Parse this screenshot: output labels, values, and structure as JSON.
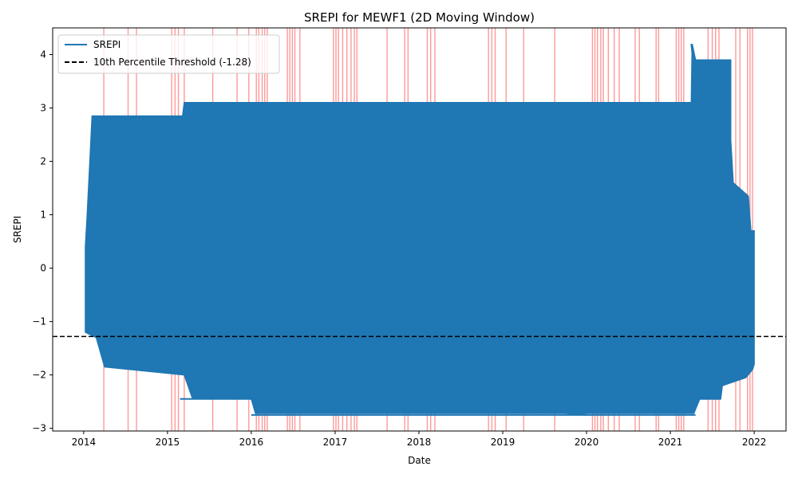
{
  "chart_data": {
    "type": "line",
    "title": "SREPI for MEWF1 (2D Moving Window)",
    "xlabel": "Date",
    "ylabel": "SREPI",
    "xlim": [
      2013.63,
      2022.38
    ],
    "ylim": [
      -3.05,
      4.5
    ],
    "x_ticks": [
      {
        "value": 2014,
        "label": "2014"
      },
      {
        "value": 2015,
        "label": "2015"
      },
      {
        "value": 2016,
        "label": "2016"
      },
      {
        "value": 2017,
        "label": "2017"
      },
      {
        "value": 2018,
        "label": "2018"
      },
      {
        "value": 2019,
        "label": "2019"
      },
      {
        "value": 2020,
        "label": "2020"
      },
      {
        "value": 2021,
        "label": "2021"
      },
      {
        "value": 2022,
        "label": "2022"
      }
    ],
    "y_ticks": [
      {
        "value": -3,
        "label": "−3"
      },
      {
        "value": -2,
        "label": "−2"
      },
      {
        "value": -1,
        "label": "−1"
      },
      {
        "value": 0,
        "label": "0"
      },
      {
        "value": 1,
        "label": "1"
      },
      {
        "value": 2,
        "label": "2"
      },
      {
        "value": 3,
        "label": "3"
      },
      {
        "value": 4,
        "label": "4"
      }
    ],
    "legend": {
      "placement": "upper-left",
      "entries": [
        {
          "label": "SREPI",
          "style": "solid",
          "color": "#1f77b4"
        },
        {
          "label": "10th Percentile Threshold (-1.28)",
          "style": "dashed",
          "color": "#000000"
        }
      ]
    },
    "threshold": {
      "value": -1.28,
      "color": "#000000",
      "style": "dashed"
    },
    "drought_span_color": "#ff0000",
    "drought_markers_x": [
      2014.24,
      2014.53,
      2014.63,
      2015.05,
      2015.09,
      2015.13,
      2015.2,
      2015.54,
      2015.83,
      2015.97,
      2016.06,
      2016.09,
      2016.13,
      2016.16,
      2016.19,
      2016.43,
      2016.46,
      2016.49,
      2016.52,
      2016.58,
      2016.98,
      2017.01,
      2017.04,
      2017.09,
      2017.14,
      2017.19,
      2017.23,
      2017.26,
      2017.62,
      2017.83,
      2017.87,
      2018.1,
      2018.14,
      2018.19,
      2018.83,
      2018.87,
      2018.91,
      2019.04,
      2019.25,
      2019.62,
      2020.07,
      2020.1,
      2020.13,
      2020.17,
      2020.2,
      2020.26,
      2020.33,
      2020.39,
      2020.58,
      2020.63,
      2020.83,
      2020.86,
      2021.07,
      2021.1,
      2021.13,
      2021.16,
      2021.45,
      2021.5,
      2021.54,
      2021.58,
      2021.78,
      2021.83,
      2021.92,
      2021.95,
      2021.98
    ],
    "envelope_upper": [
      [
        2014.02,
        0.4
      ],
      [
        2014.04,
        0.95
      ],
      [
        2014.08,
        2.2
      ],
      [
        2014.1,
        2.85
      ],
      [
        2015.18,
        2.85
      ],
      [
        2015.2,
        3.1
      ],
      [
        2021.25,
        3.1
      ],
      [
        2021.26,
        4.2
      ],
      [
        2021.3,
        3.9
      ],
      [
        2021.72,
        3.9
      ],
      [
        2021.72,
        2.4
      ],
      [
        2021.75,
        1.6
      ],
      [
        2021.93,
        1.35
      ],
      [
        2021.96,
        0.7
      ],
      [
        2022.0,
        0.7
      ]
    ],
    "envelope_lower": [
      [
        2014.02,
        -1.2
      ],
      [
        2014.15,
        -1.3
      ],
      [
        2014.25,
        -1.85
      ],
      [
        2015.2,
        -2.0
      ],
      [
        2015.3,
        -2.45
      ],
      [
        2016.0,
        -2.45
      ],
      [
        2016.05,
        -2.72
      ],
      [
        2021.28,
        -2.72
      ],
      [
        2021.35,
        -2.45
      ],
      [
        2021.6,
        -2.45
      ],
      [
        2021.62,
        -2.2
      ],
      [
        2021.9,
        -2.05
      ],
      [
        2021.98,
        -1.9
      ],
      [
        2022.0,
        -1.8
      ]
    ],
    "series": [
      {
        "name": "SREPI",
        "values_note_range": [
          -2.75,
          4.2
        ],
        "color": "#1f77b4"
      }
    ],
    "outline_lines": [
      {
        "points": [
          [
            2016.0,
            -2.75
          ],
          [
            2021.3,
            -2.75
          ]
        ]
      },
      {
        "points": [
          [
            2015.15,
            -2.45
          ],
          [
            2021.6,
            -2.45
          ]
        ]
      },
      {
        "points": [
          [
            2017.5,
            -2.4
          ],
          [
            2020.0,
            -2.75
          ]
        ]
      },
      {
        "points": [
          [
            2021.25,
            4.2
          ],
          [
            2021.27,
            3.9
          ],
          [
            2021.72,
            3.85
          ]
        ]
      }
    ]
  }
}
